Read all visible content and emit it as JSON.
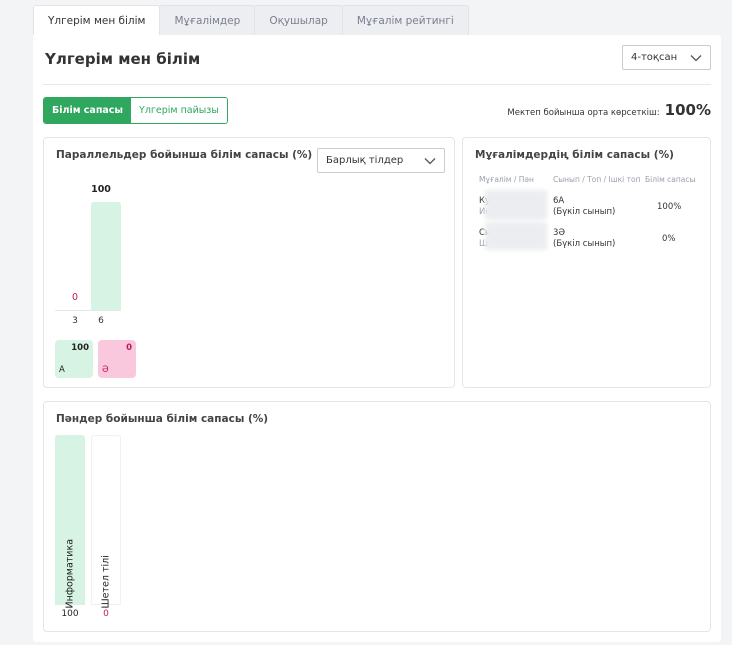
{
  "tabs": [
    "Үлгерім мен білім",
    "Мұғалімдер",
    "Оқушылар",
    "Мұғалім рейтингі"
  ],
  "page_title": "Үлгерім мен білім",
  "quarter_select": "4-тоқсан",
  "toggle": {
    "quality": "Білім сапасы",
    "progress": "Үлгерім пайызы"
  },
  "avg": {
    "label": "Мектеп бойынша орта көрсеткіш:",
    "value": "100%"
  },
  "parallels": {
    "title": "Параллельдер бойынша білім сапасы (%)",
    "lang_select": "Барлық тілдер",
    "legend": [
      {
        "name": "А",
        "value": "100"
      },
      {
        "name": "Ә",
        "value": "0"
      }
    ]
  },
  "teachers": {
    "title": "Мұғалімдердің білім сапасы (%)",
    "headers": [
      "Мұғалім / Пән",
      "Сынып / Топ / Ішкі топ",
      "Білім сапасы"
    ],
    "rows": [
      {
        "name": "Ку",
        "subject": "Ин",
        "class": "6А",
        "group": "(Бүкіл сынып)",
        "quality": "100%"
      },
      {
        "name": "Сь",
        "subject": "Ш",
        "class": "3Ә",
        "group": "(Бүкіл сынып)",
        "quality": "0%"
      }
    ]
  },
  "subjects": {
    "title": "Пәндер бойынша білім сапасы (%)"
  },
  "colors": {
    "green": "#2fa75f",
    "bar_green": "#d6f3e3",
    "bar_pink": "#f9c8dc",
    "pink_text": "#c2185b"
  },
  "chart_data": [
    {
      "type": "bar",
      "title": "Параллельдер бойынша білім сапасы (%)",
      "categories": [
        "3",
        "6"
      ],
      "series": [
        {
          "name": "А",
          "values": [
            0,
            100
          ]
        }
      ],
      "ylim": [
        0,
        100
      ]
    },
    {
      "type": "bar",
      "title": "Пәндер бойынша білім сапасы (%)",
      "categories": [
        "Информатика",
        "Шетел тілі"
      ],
      "values": [
        100,
        0
      ],
      "ylim": [
        0,
        100
      ]
    }
  ]
}
